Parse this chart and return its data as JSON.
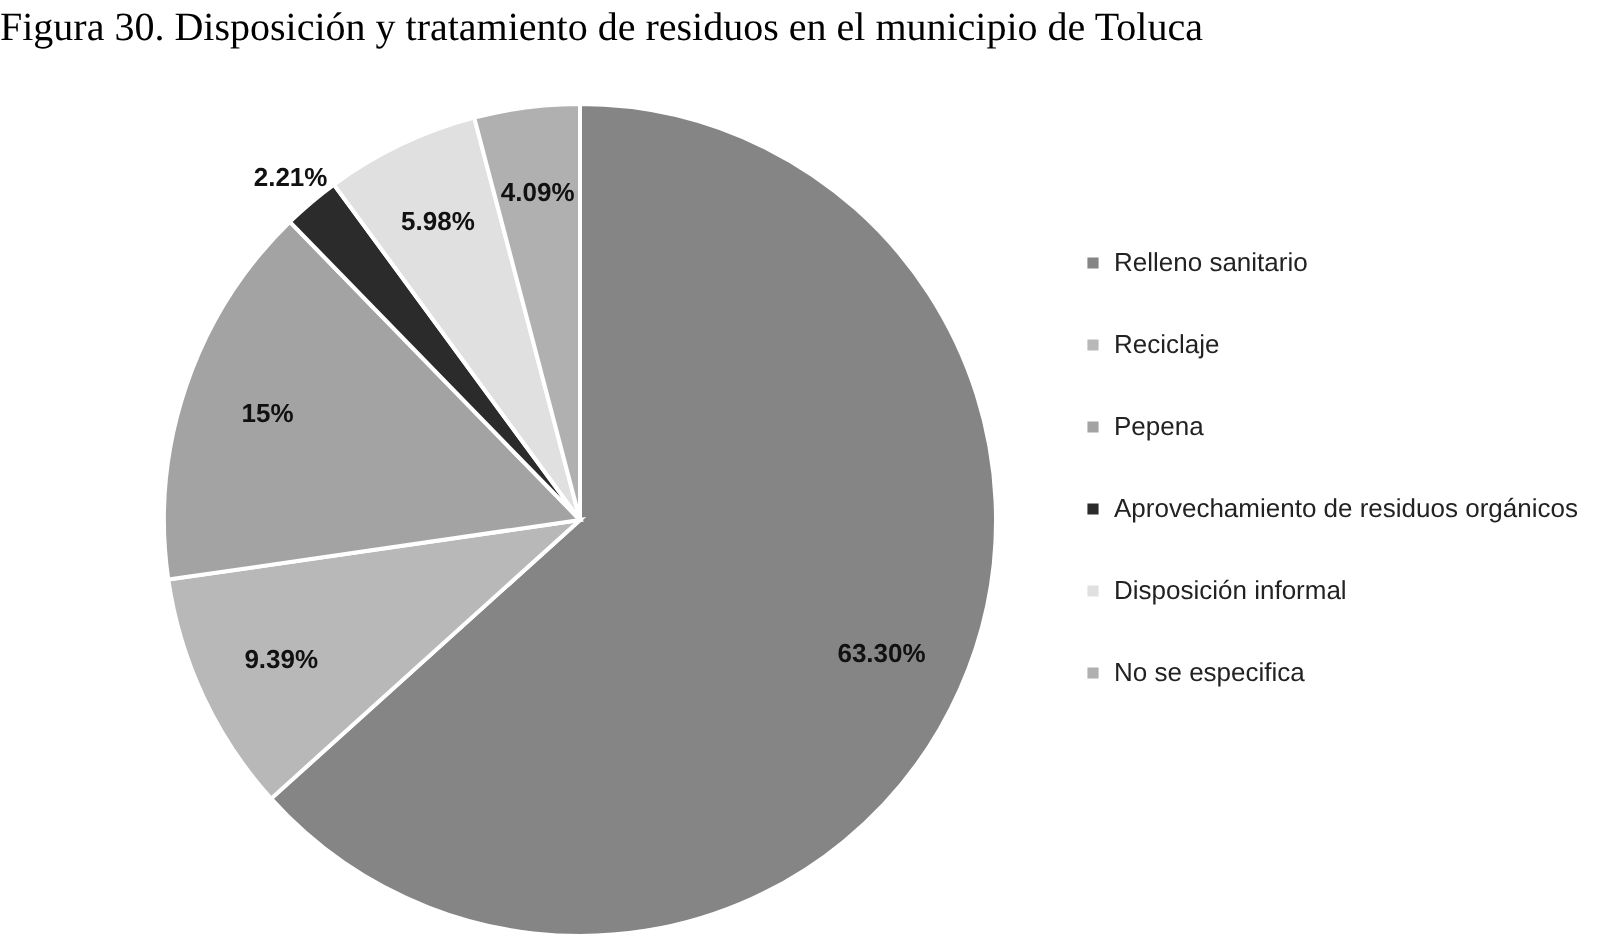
{
  "chart_data": {
    "type": "pie",
    "title": "Figura 30. Disposición y tratamiento de residuos en el municipio de Toluca",
    "categories": [
      "Relleno sanitario",
      "Reciclaje",
      "Pepena",
      "Aprovechamiento de residuos orgánicos",
      "Disposición informal",
      "No se especifica"
    ],
    "values": [
      63.3,
      9.39,
      15,
      2.21,
      5.98,
      4.09
    ],
    "colors": [
      "#858585",
      "#b8b8b8",
      "#a3a3a3",
      "#2b2b2b",
      "#e0e0e0",
      "#b0b0b0"
    ],
    "value_labels": [
      "63.30%",
      "9.39%",
      "15%",
      "2.21%",
      "5.98%",
      "4.09%"
    ],
    "legend": "right"
  }
}
